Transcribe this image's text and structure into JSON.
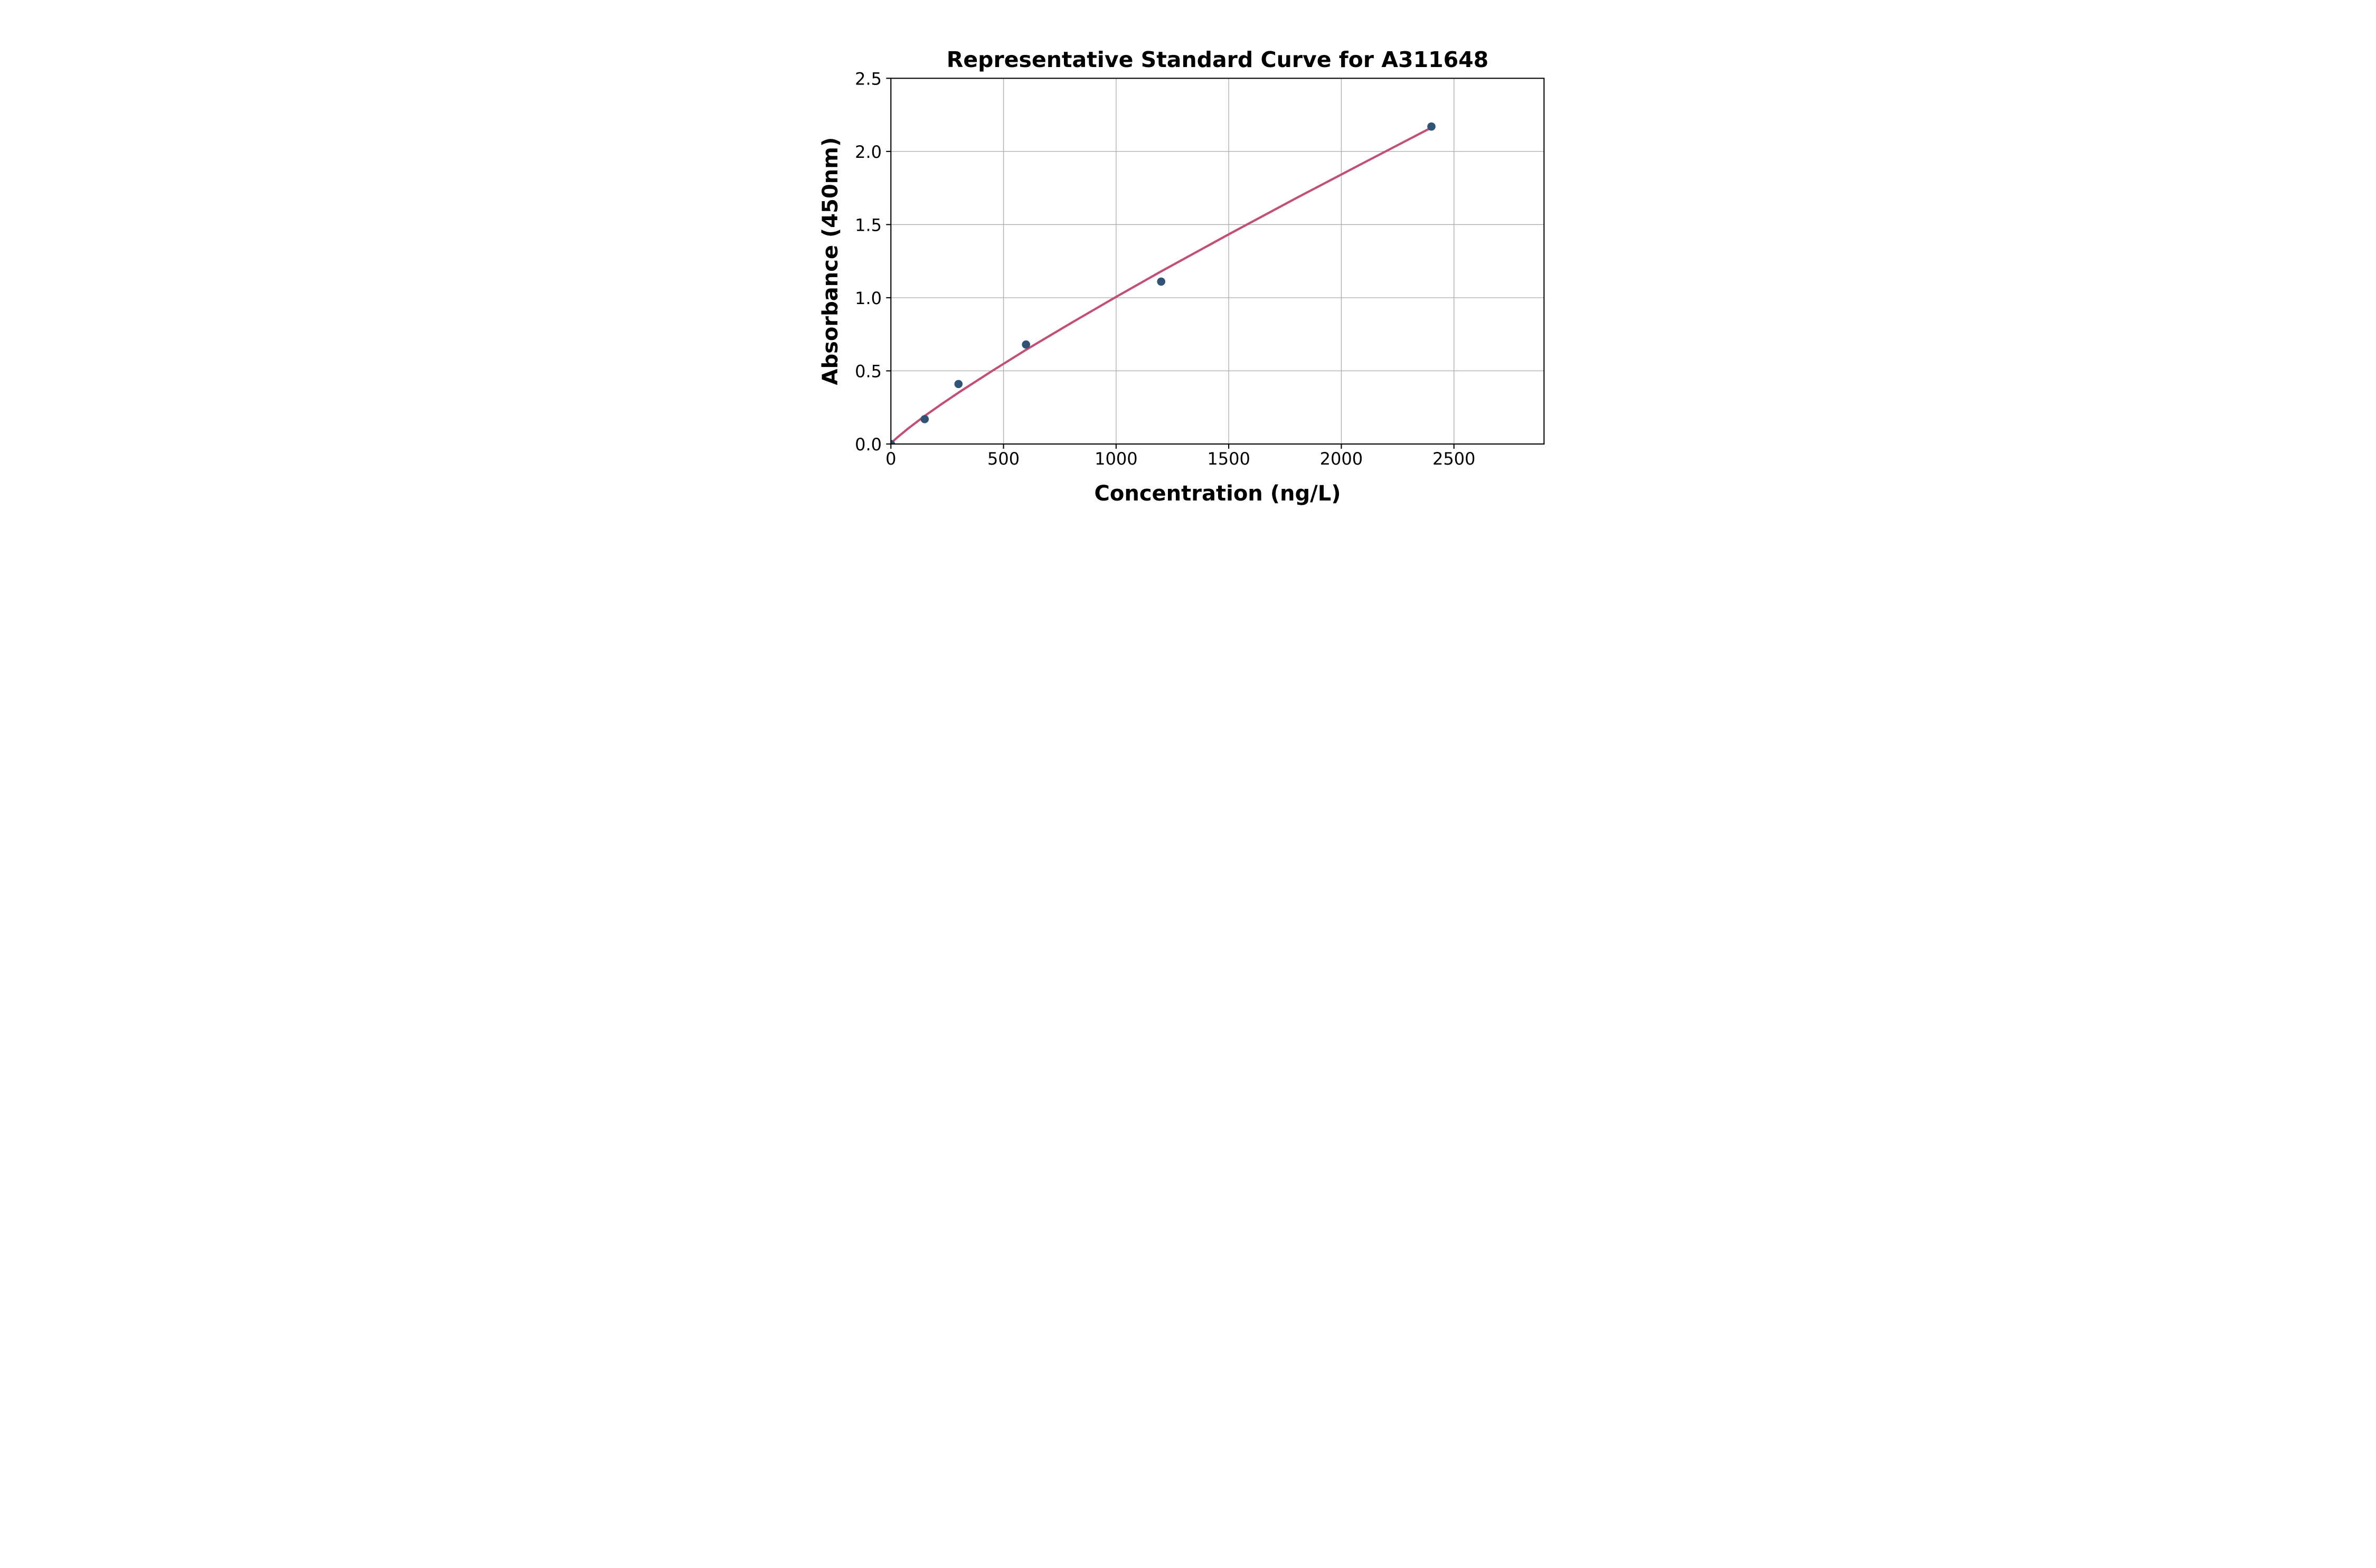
{
  "page": {
    "background_color": "#ffffff"
  },
  "chart_data": {
    "type": "scatter",
    "title": "Representative Standard Curve for A311648",
    "xlabel": "Concentration (ng/L)",
    "ylabel": "Absorbance (450nm)",
    "xlim": [
      0,
      2900
    ],
    "ylim": [
      0,
      2.5
    ],
    "grid": true,
    "legend_position": "none",
    "xticks": {
      "values": [
        0,
        500,
        1000,
        1500,
        2000,
        2500
      ],
      "labels": [
        "0",
        "500",
        "1000",
        "1500",
        "2000",
        "2500"
      ]
    },
    "yticks": {
      "values": [
        0,
        0.5,
        1.0,
        1.5,
        2.0,
        2.5
      ],
      "labels": [
        "0.0",
        "0.5",
        "1.0",
        "1.5",
        "2.0",
        "2.5"
      ]
    },
    "colors": {
      "point": "#2f5476",
      "curve": "#c34f72",
      "grid": "#b0b0b0",
      "axis": "#000000",
      "background": "#ffffff"
    },
    "series": [
      {
        "name": "standard-data-points",
        "type": "scatter",
        "color": "#2f5476",
        "points": [
          [
            0,
            0.0
          ],
          [
            150,
            0.17
          ],
          [
            300,
            0.41
          ],
          [
            600,
            0.68
          ],
          [
            1200,
            1.11
          ],
          [
            2400,
            2.17
          ]
        ]
      },
      {
        "name": "fitted-standard-curve",
        "type": "line",
        "color": "#c34f72",
        "points": [
          [
            0,
            0.005
          ],
          [
            30,
            0.047
          ],
          [
            75,
            0.104
          ],
          [
            150,
            0.192
          ],
          [
            225,
            0.273
          ],
          [
            300,
            0.351
          ],
          [
            450,
            0.5
          ],
          [
            600,
            0.644
          ],
          [
            800,
            0.827
          ],
          [
            1000,
            1.006
          ],
          [
            1200,
            1.18
          ],
          [
            1500,
            1.433
          ],
          [
            1800,
            1.681
          ],
          [
            2100,
            1.923
          ],
          [
            2400,
            2.163
          ]
        ]
      }
    ]
  }
}
